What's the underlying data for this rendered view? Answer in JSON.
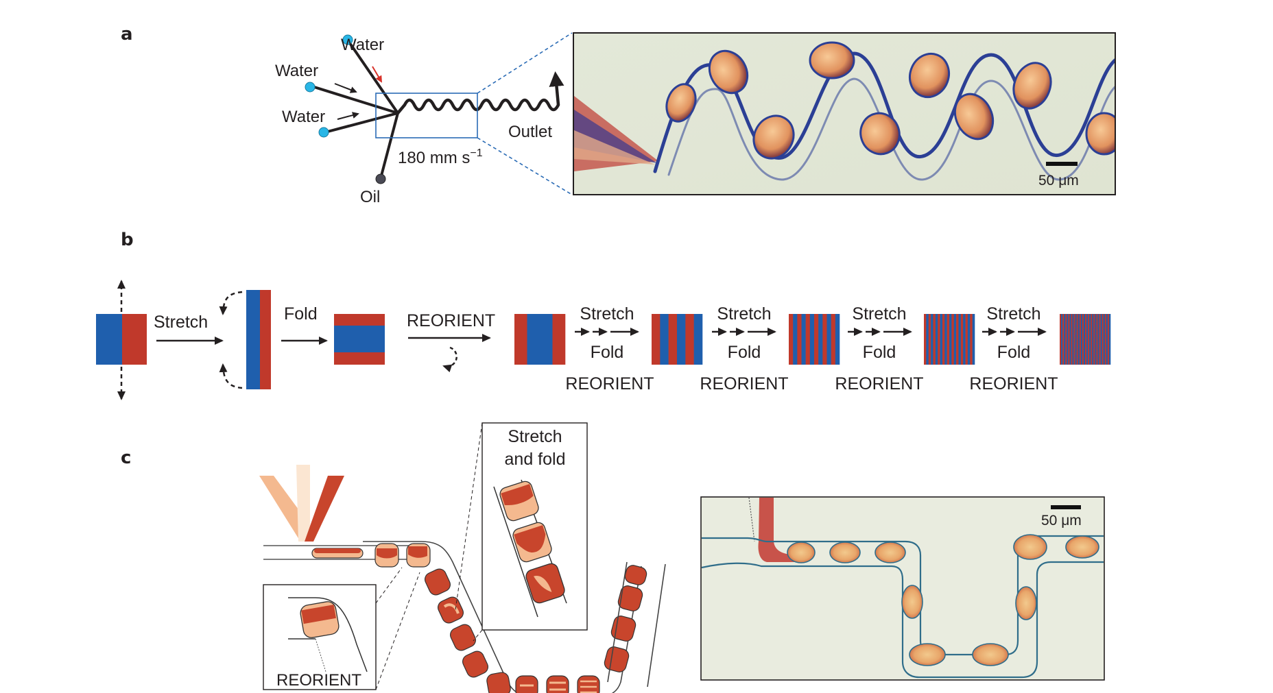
{
  "panel_labels": {
    "a": "a",
    "b": "b",
    "c": "c"
  },
  "panel_a": {
    "inlets": [
      "Water",
      "Water",
      "Water"
    ],
    "oil": "Oil",
    "outlet": "Outlet",
    "flow_speed": "180 mm s",
    "flow_speed_exp": "−1",
    "scale_bar": "50 μm"
  },
  "panel_b": {
    "stretch": "Stretch",
    "fold": "Fold",
    "reorient": "REORIENT",
    "steps": [
      {
        "top": "Stretch",
        "bottom": "Fold",
        "under": "REORIENT"
      },
      {
        "top": "Stretch",
        "bottom": "Fold",
        "under": "REORIENT"
      },
      {
        "top": "Stretch",
        "bottom": "Fold",
        "under": "REORIENT"
      },
      {
        "top": "Stretch",
        "bottom": "Fold",
        "under": "REORIENT"
      }
    ]
  },
  "panel_c": {
    "inset_reorient": "REORIENT",
    "inset_stretch_line1": "Stretch",
    "inset_stretch_line2": "and fold",
    "scale_bar": "50 μm"
  },
  "colors": {
    "blue": "#1f5fad",
    "red": "#c0392b",
    "droplet_light": "#f4b98f",
    "droplet_dark": "#c8452c",
    "cyan": "#29b6e6",
    "channel": "#283e8c",
    "photo_bg": "#e6e9d9"
  }
}
